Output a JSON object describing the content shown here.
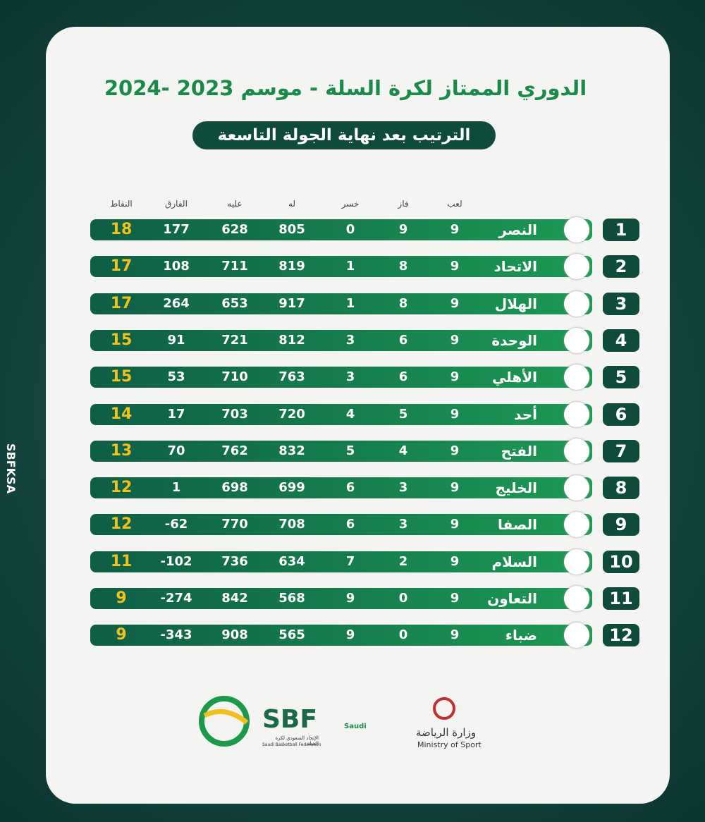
{
  "header": {
    "title": "الدوري الممتاز لكرة السلة - موسم 2023 -2024",
    "subtitle": "الترتيب بعد نهاية الجولة التاسعة"
  },
  "table": {
    "columns": [
      "لعب",
      "فاز",
      "خسر",
      "له",
      "عليه",
      "الفارق",
      "النقاط"
    ],
    "rows": [
      [
        1,
        "النصر",
        9,
        9,
        0,
        805,
        628,
        177,
        18
      ],
      [
        2,
        "الاتحاد",
        9,
        8,
        1,
        819,
        711,
        108,
        17
      ],
      [
        3,
        "الهلال",
        9,
        8,
        1,
        917,
        653,
        264,
        17
      ],
      [
        4,
        "الوحدة",
        9,
        6,
        3,
        812,
        721,
        91,
        15
      ],
      [
        5,
        "الأهلي",
        9,
        6,
        3,
        763,
        710,
        53,
        15
      ],
      [
        6,
        "أحد",
        9,
        5,
        4,
        720,
        703,
        17,
        14
      ],
      [
        7,
        "الفتح",
        9,
        4,
        5,
        832,
        762,
        70,
        13
      ],
      [
        8,
        "الخليج",
        9,
        3,
        6,
        699,
        698,
        1,
        12
      ],
      [
        9,
        "الصفا",
        9,
        3,
        6,
        708,
        770,
        -62,
        12
      ],
      [
        10,
        "السلام",
        9,
        2,
        7,
        634,
        736,
        -102,
        11
      ],
      [
        11,
        "التعاون",
        9,
        0,
        9,
        568,
        842,
        -274,
        9
      ],
      [
        12,
        "ضباء",
        9,
        0,
        9,
        565,
        908,
        -343,
        9
      ]
    ]
  },
  "social": {
    "handle": "SBFKSA"
  },
  "footer": {
    "sbf": "SBF",
    "sbf_ar": "الإتحاد السعودي لكرة السلة",
    "sbf_en": "Saudi Basketball Federation",
    "olympic": "Saudi",
    "ministry_ar": "وزارة الرياضة",
    "ministry_en": "Ministry of Sport"
  }
}
